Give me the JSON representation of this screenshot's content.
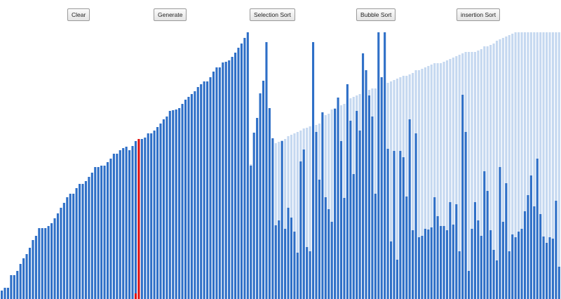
{
  "toolbar": {
    "clear_label": "Clear",
    "generate_label": "Generate",
    "selection_sort_label": "Selection Sort",
    "bubble_sort_label": "Bubble Sort",
    "insertion_sort_label": "insertion Sort"
  },
  "colors": {
    "bar": "#2e6fc7",
    "bar_ghost": "#c5d8f0",
    "highlight": "#e01010"
  },
  "sort_state": {
    "max_value": 380,
    "highlight_index": 44,
    "values": [
      12,
      16,
      16,
      34,
      34,
      40,
      50,
      58,
      64,
      73,
      84,
      90,
      101,
      101,
      101,
      104,
      108,
      115,
      122,
      130,
      137,
      145,
      150,
      150,
      158,
      164,
      164,
      168,
      174,
      180,
      188,
      188,
      190,
      190,
      195,
      200,
      207,
      207,
      212,
      215,
      217,
      212,
      218,
      225,
      228,
      228,
      230,
      236,
      236,
      240,
      245,
      250,
      256,
      260,
      268,
      269,
      270,
      272,
      278,
      284,
      288,
      292,
      296,
      302,
      306,
      310,
      310,
      316,
      324,
      330,
      330,
      337,
      338,
      340,
      345,
      351,
      358,
      364,
      372,
      380,
      190,
      237,
      258,
      293,
      311,
      366,
      272,
      229,
      105,
      112,
      225,
      100,
      130,
      116,
      96,
      66,
      196,
      213,
      74,
      68,
      366,
      238,
      170,
      266,
      145,
      128,
      110,
      271,
      287,
      225,
      144,
      306,
      254,
      178,
      268,
      240,
      350,
      326,
      290,
      260,
      150,
      380,
      316,
      380,
      214,
      82,
      211,
      56,
      211,
      202,
      146,
      256,
      98,
      236,
      88,
      90,
      100,
      99,
      102,
      145,
      118,
      104,
      104,
      98,
      138,
      106,
      135,
      68,
      291,
      238,
      40,
      100,
      138,
      112,
      90,
      182,
      154,
      98,
      70,
      55,
      188,
      110,
      165,
      68,
      92,
      88,
      96,
      100,
      125,
      148,
      176,
      132,
      200,
      121,
      89,
      80,
      88,
      86,
      140,
      46
    ],
    "ghost": [
      0,
      0,
      0,
      0,
      0,
      0,
      0,
      0,
      0,
      0,
      0,
      0,
      0,
      0,
      0,
      0,
      0,
      0,
      0,
      0,
      0,
      0,
      0,
      0,
      0,
      0,
      0,
      0,
      0,
      0,
      0,
      0,
      0,
      0,
      0,
      0,
      0,
      0,
      0,
      0,
      0,
      0,
      0,
      0,
      0,
      0,
      0,
      0,
      0,
      0,
      0,
      0,
      0,
      0,
      0,
      0,
      0,
      0,
      0,
      0,
      0,
      0,
      0,
      0,
      0,
      0,
      0,
      0,
      0,
      0,
      0,
      0,
      0,
      0,
      0,
      0,
      0,
      0,
      0,
      0,
      192,
      192,
      208,
      218,
      218,
      220,
      220,
      222,
      222,
      224,
      226,
      228,
      232,
      234,
      236,
      238,
      240,
      243,
      244,
      246,
      247,
      248,
      250,
      256,
      262,
      264,
      270,
      272,
      274,
      276,
      278,
      280,
      286,
      288,
      290,
      292,
      294,
      296,
      298,
      300,
      300,
      302,
      304,
      306,
      308,
      310,
      312,
      314,
      316,
      318,
      318,
      320,
      322,
      326,
      326,
      328,
      330,
      332,
      334,
      336,
      336,
      336,
      338,
      340,
      342,
      344,
      346,
      348,
      350,
      352,
      352,
      352,
      352,
      354,
      356,
      360,
      360,
      362,
      364,
      368,
      370,
      372,
      374,
      376,
      378,
      380,
      380,
      380,
      380,
      380,
      380,
      380,
      380,
      380,
      380,
      380,
      380,
      380,
      380,
      380
    ]
  }
}
